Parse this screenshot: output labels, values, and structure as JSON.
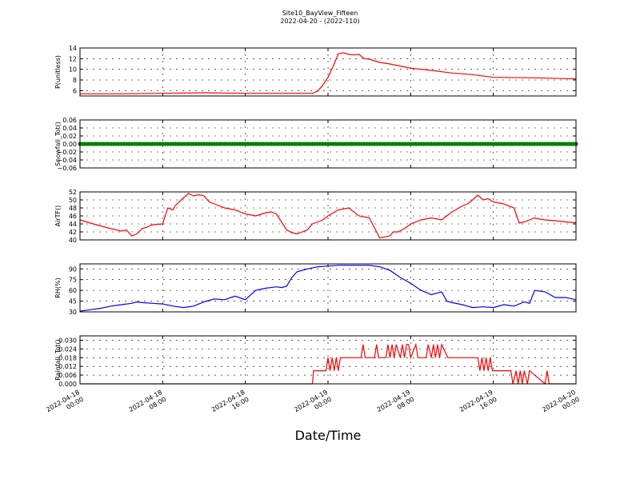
{
  "title_line1": "Site10_BayView_Fifteen",
  "title_line2": "2022-04-20 - (2022-110)",
  "xlabel": "Date/Time",
  "colors": {
    "P": "#ff0000",
    "Snowfall_Tot": "#007f00",
    "AirTF": "#ff0000",
    "RH": "#0000ff",
    "Rainfall_Tot": "#ff0000"
  },
  "chart_data": [
    {
      "type": "line",
      "name": "P",
      "ylabel": "P(unitless)",
      "xlim": [
        "2022-04-18 00:00",
        "2022-04-20 00:00"
      ],
      "ylim": [
        5,
        14
      ],
      "yticks": [
        6,
        8,
        10,
        12,
        14
      ],
      "ytick_labels": [
        "6",
        "8",
        "10",
        "12",
        "14"
      ],
      "x_hours": [
        0,
        4,
        8,
        12,
        16,
        20,
        22.5,
        23,
        23.5,
        24,
        24.5,
        25,
        25.5,
        26,
        26.5,
        27,
        27.5,
        28,
        29,
        30,
        32,
        34,
        36,
        38,
        40,
        44,
        48
      ],
      "values": [
        5.4,
        5.4,
        5.5,
        5.6,
        5.5,
        5.5,
        5.5,
        5.9,
        7.0,
        8.5,
        10.6,
        12.9,
        13.1,
        12.8,
        12.7,
        12.8,
        12.0,
        11.9,
        11.3,
        11.0,
        10.2,
        9.8,
        9.3,
        9.0,
        8.5,
        8.4,
        8.2
      ]
    },
    {
      "type": "scatter",
      "name": "Snowfall_Tot",
      "ylabel": "Snowfall_Tot()",
      "xlim": [
        "2022-04-18 00:00",
        "2022-04-20 00:00"
      ],
      "ylim": [
        -0.06,
        0.06
      ],
      "yticks": [
        -0.06,
        -0.04,
        -0.02,
        0.0,
        0.02,
        0.04,
        0.06
      ],
      "ytick_labels": [
        "−0.06",
        "−0.04",
        "−0.02",
        "0.00",
        "0.02",
        "0.04",
        "0.06"
      ],
      "x_hours_range": [
        0,
        48
      ],
      "x_step_hours": 0.25,
      "constant_value": 0.0
    },
    {
      "type": "line",
      "name": "AirTF",
      "ylabel": "AirTF()",
      "xlim": [
        "2022-04-18 00:00",
        "2022-04-20 00:00"
      ],
      "ylim": [
        40,
        52
      ],
      "yticks": [
        40,
        42,
        44,
        46,
        48,
        50,
        52
      ],
      "ytick_labels": [
        "40",
        "42",
        "44",
        "46",
        "48",
        "50",
        "52"
      ],
      "x_hours": [
        0,
        1,
        2,
        3,
        4,
        4.5,
        5,
        5.5,
        6,
        6.5,
        7,
        8,
        8.5,
        9,
        9.2,
        9.5,
        10,
        10.5,
        11,
        11.5,
        12,
        12.5,
        13,
        14,
        15,
        16,
        17,
        18,
        18.5,
        19,
        20,
        20.5,
        21,
        22,
        22.5,
        23,
        23.5,
        24,
        25,
        26,
        27,
        28,
        29,
        30,
        30.3,
        30.8,
        31.5,
        32,
        33,
        34,
        35,
        35.5,
        36,
        37,
        37.5,
        38,
        38.5,
        39,
        39.5,
        40,
        41,
        42,
        42.5,
        43,
        43.5,
        44,
        44.5,
        45,
        46,
        47,
        48
      ],
      "values": [
        45.0,
        44.2,
        43.5,
        42.8,
        42.2,
        42.5,
        41.0,
        41.5,
        42.8,
        43.2,
        43.8,
        44.0,
        48.0,
        47.5,
        48.5,
        49.3,
        50.5,
        51.6,
        51.0,
        51.3,
        51.0,
        49.5,
        49.0,
        48.0,
        47.5,
        46.5,
        46.0,
        46.8,
        47.0,
        46.5,
        42.5,
        41.8,
        41.5,
        42.5,
        44.0,
        44.5,
        45.0,
        46.0,
        47.5,
        48.0,
        46.0,
        45.5,
        40.5,
        41.0,
        42.0,
        42.0,
        43.0,
        44.0,
        45.0,
        45.5,
        45.0,
        46.0,
        47.0,
        48.5,
        49.0,
        50.0,
        51.2,
        50.0,
        50.3,
        49.5,
        49.0,
        48.0,
        44.2,
        44.5,
        45.0,
        45.5,
        45.2,
        45.0,
        44.8,
        44.5,
        44.3
      ]
    },
    {
      "type": "line",
      "name": "RH",
      "ylabel": "RH(%)",
      "xlim": [
        "2022-04-18 00:00",
        "2022-04-20 00:00"
      ],
      "ylim": [
        30,
        97
      ],
      "yticks": [
        30,
        45,
        60,
        75,
        90
      ],
      "ytick_labels": [
        "30",
        "45",
        "60",
        "75",
        "90"
      ],
      "x_hours": [
        0,
        1,
        2,
        3,
        4,
        5,
        5.5,
        6,
        7,
        8,
        9,
        10,
        11,
        12,
        13,
        14,
        15,
        16,
        17,
        18,
        19,
        19.5,
        20,
        20.5,
        21,
        22,
        23,
        24,
        25,
        26,
        27,
        28,
        29,
        30,
        31,
        32,
        33,
        34,
        35,
        35.5,
        36,
        37,
        38,
        39,
        40,
        41,
        42,
        43,
        43.5,
        44,
        45,
        46,
        47,
        48
      ],
      "values": [
        31,
        33,
        35,
        38,
        40,
        42,
        44,
        43,
        42,
        41,
        38,
        36,
        38,
        44,
        48,
        47,
        52,
        47,
        60,
        63,
        65,
        64,
        66,
        78,
        86,
        90,
        93,
        94,
        95,
        95,
        95,
        95,
        93,
        88,
        78,
        70,
        60,
        54,
        58,
        45,
        43,
        40,
        36,
        37,
        36,
        40,
        38,
        44,
        42,
        60,
        58,
        50,
        50,
        47
      ]
    },
    {
      "type": "line",
      "name": "Rainfall_Tot",
      "ylabel": "Rainfall_Tot()",
      "xlim": [
        "2022-04-18 00:00",
        "2022-04-20 00:00"
      ],
      "ylim": [
        0.0,
        0.033
      ],
      "yticks": [
        0.0,
        0.006,
        0.012,
        0.018,
        0.024,
        0.03
      ],
      "ytick_labels": [
        "0.000",
        "0.006",
        "0.012",
        "0.018",
        "0.024",
        "0.030"
      ],
      "x_hours": [
        0,
        22.5,
        22.6,
        23.8,
        24.0,
        24.2,
        24.4,
        24.6,
        24.8,
        25.0,
        25.2,
        27.2,
        27.4,
        27.6,
        28.5,
        28.7,
        28.9,
        29.6,
        29.8,
        30.0,
        30.2,
        30.4,
        30.6,
        31.0,
        31.2,
        31.4,
        31.6,
        31.8,
        32.0,
        32.5,
        32.7,
        33.5,
        33.7,
        34.0,
        34.2,
        34.4,
        34.6,
        34.8,
        35.0,
        35.6,
        35.8,
        36.0,
        38.5,
        38.7,
        38.9,
        39.1,
        39.3,
        39.5,
        39.7,
        39.9,
        40.1,
        40.3,
        41.7,
        41.9,
        42.2,
        42.4,
        42.6,
        42.8,
        43.0,
        43.3,
        43.5,
        45.0,
        45.2,
        45.4,
        48
      ],
      "values": [
        0.0,
        0.0,
        0.009,
        0.009,
        0.018,
        0.009,
        0.018,
        0.009,
        0.018,
        0.009,
        0.018,
        0.018,
        0.027,
        0.018,
        0.018,
        0.027,
        0.018,
        0.018,
        0.027,
        0.018,
        0.027,
        0.018,
        0.027,
        0.018,
        0.027,
        0.018,
        0.027,
        0.027,
        0.018,
        0.027,
        0.018,
        0.018,
        0.027,
        0.018,
        0.027,
        0.018,
        0.027,
        0.018,
        0.027,
        0.018,
        0.018,
        0.018,
        0.018,
        0.009,
        0.018,
        0.009,
        0.018,
        0.009,
        0.018,
        0.009,
        0.009,
        0.009,
        0.009,
        0.0,
        0.009,
        0.0,
        0.009,
        0.0,
        0.009,
        0.0,
        0.009,
        0.0,
        0.009,
        0.0,
        0.0
      ]
    }
  ],
  "xticks": [
    {
      "l1": "2022-04-18",
      "l2": "00:00",
      "hour": 0
    },
    {
      "l1": "2022-04-18",
      "l2": "08:00",
      "hour": 8
    },
    {
      "l1": "2022-04-18",
      "l2": "16:00",
      "hour": 16
    },
    {
      "l1": "2022-04-19",
      "l2": "00:00",
      "hour": 24
    },
    {
      "l1": "2022-04-19",
      "l2": "08:00",
      "hour": 32
    },
    {
      "l1": "2022-04-19",
      "l2": "16:00",
      "hour": 40
    },
    {
      "l1": "2022-04-20",
      "l2": "00:00",
      "hour": 48
    }
  ]
}
